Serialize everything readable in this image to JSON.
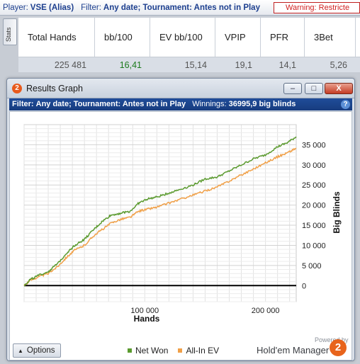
{
  "topbar": {
    "player_label": "Player:",
    "player_value": "VSE (Alias)",
    "filter_label": "Filter:",
    "filter_value": "Any date; Tournament: Antes not in Play",
    "warning": "Warning: Restricte"
  },
  "stats_tab": "Stats",
  "stats_table": {
    "headers": [
      "Total Hands",
      "bb/100",
      "EV bb/100",
      "VPIP",
      "PFR",
      "3Bet"
    ],
    "values": [
      "225 481",
      "16,41",
      "15,14",
      "19,1",
      "14,1",
      "5,26"
    ]
  },
  "window": {
    "title": "Results Graph",
    "logo_glyph": "2",
    "minimize": "–",
    "maximize": "□",
    "close": "X",
    "filter_label": "Filter:",
    "filter_value": "Any date; Tournament: Antes not in Play",
    "winnings_label": "Winnings:",
    "winnings_value": "36995,9 big blinds",
    "help": "?"
  },
  "chart_data": {
    "type": "line",
    "xlabel": "Hands",
    "ylabel": "Big Blinds",
    "xlim": [
      0,
      225481
    ],
    "ylim": [
      -4000,
      40000
    ],
    "x_ticks": [
      100000,
      200000
    ],
    "x_tick_labels": [
      "100 000",
      "200 000"
    ],
    "y_ticks": [
      0,
      5000,
      10000,
      15000,
      20000,
      25000,
      30000,
      35000
    ],
    "y_tick_labels": [
      "0",
      "5 000",
      "10 000",
      "15 000",
      "20 000",
      "25 000",
      "30 000",
      "35 000"
    ],
    "grid": true,
    "colors": {
      "Net Won": "#5a9a2e",
      "All-In EV": "#f0a048"
    },
    "series": [
      {
        "name": "Net Won",
        "x": [
          0,
          5000,
          12000,
          20000,
          28000,
          35000,
          42000,
          50000,
          58000,
          65000,
          72000,
          80000,
          88000,
          95000,
          102000,
          110000,
          120000,
          130000,
          140000,
          150000,
          160000,
          170000,
          180000,
          190000,
          200000,
          210000,
          218000,
          225481
        ],
        "y": [
          0,
          1500,
          2500,
          3500,
          5500,
          8000,
          10000,
          11500,
          14000,
          16000,
          17500,
          18000,
          18500,
          20500,
          21500,
          22000,
          23000,
          24000,
          25000,
          26500,
          27000,
          28500,
          30000,
          31500,
          32500,
          34500,
          35500,
          36996
        ]
      },
      {
        "name": "All-In EV",
        "x": [
          0,
          5000,
          12000,
          20000,
          28000,
          35000,
          42000,
          50000,
          58000,
          65000,
          72000,
          80000,
          88000,
          95000,
          102000,
          110000,
          120000,
          130000,
          140000,
          150000,
          160000,
          170000,
          180000,
          190000,
          200000,
          210000,
          218000,
          225481
        ],
        "y": [
          0,
          1300,
          2200,
          3000,
          4800,
          7000,
          8800,
          10000,
          12500,
          14000,
          15500,
          16500,
          17000,
          18500,
          19000,
          19500,
          20500,
          21500,
          22500,
          23500,
          24500,
          26000,
          27500,
          29000,
          30500,
          32000,
          33000,
          34138
        ]
      }
    ]
  },
  "footer": {
    "options_label": "Options",
    "legend_net": "Net Won",
    "legend_ev": "All-In EV",
    "powered_by": "Powered by",
    "brand": "Hold'em Manager",
    "brand_logo": "2"
  }
}
